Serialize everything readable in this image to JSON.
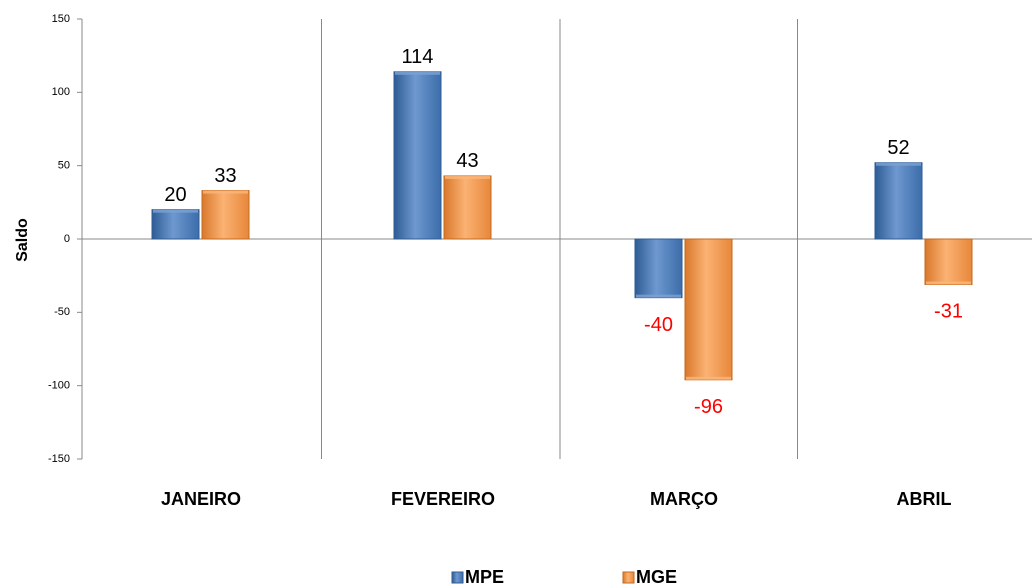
{
  "chart_data": {
    "type": "bar",
    "ylabel": "Saldo",
    "ylim": [
      -150,
      150
    ],
    "yticks": [
      150,
      100,
      50,
      0,
      -50,
      -100,
      -150
    ],
    "categories": [
      "JANEIRO",
      "FEVEREIRO",
      "MARÇO",
      "ABRIL"
    ],
    "series": [
      {
        "name": "MPE",
        "values": [
          20,
          114,
          -40,
          52
        ]
      },
      {
        "name": "MGE",
        "values": [
          33,
          43,
          -96,
          -31
        ]
      }
    ],
    "data_labels": [
      [
        "20",
        "114",
        "-40",
        "52"
      ],
      [
        "33",
        "43",
        "-96",
        "-31"
      ]
    ],
    "legend_position": "bottom",
    "colors": {
      "MPE": "#4F81BD",
      "MPE_light": "#7DA2D4",
      "MPE_dark": "#2E5C94",
      "MGE": "#F79646",
      "MGE_light": "#FBB77A",
      "MGE_dark": "#C56A1E",
      "negative_label": "#FF0000",
      "positive_label": "#000000",
      "axis": "#888888"
    }
  }
}
